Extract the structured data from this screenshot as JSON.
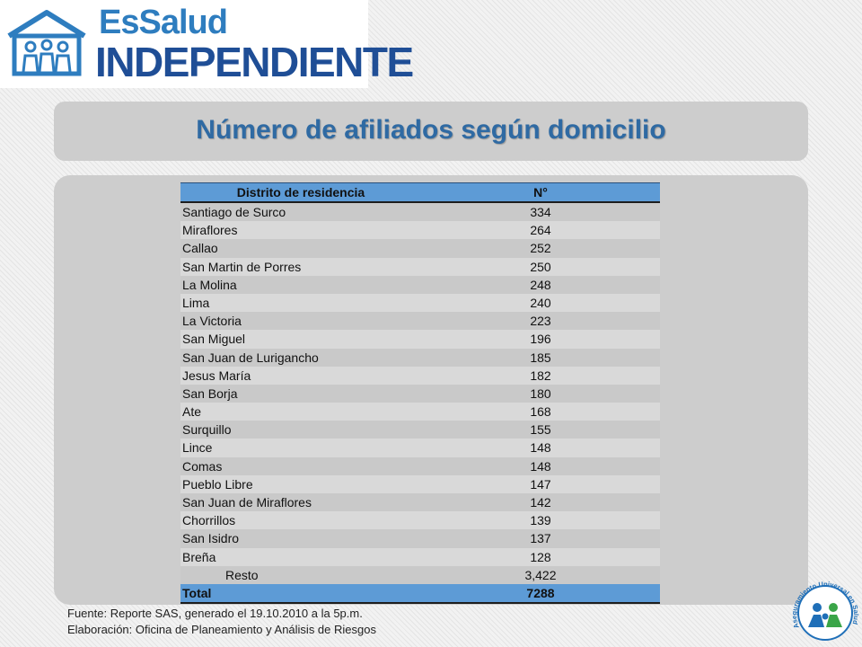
{
  "logo": {
    "line1": "EsSalud",
    "line2": "INDEPENDIENTE",
    "mark_icon": "family-house-icon"
  },
  "title": "Número de afiliados según domicilio",
  "table": {
    "headers": {
      "district": "Distrito de residencia",
      "count": "N°"
    },
    "rows": [
      {
        "district": "Santiago de Surco",
        "count": "334"
      },
      {
        "district": "Miraflores",
        "count": "264"
      },
      {
        "district": "Callao",
        "count": "252"
      },
      {
        "district": "San Martin de Porres",
        "count": "250"
      },
      {
        "district": "La Molina",
        "count": "248"
      },
      {
        "district": "Lima",
        "count": "240"
      },
      {
        "district": "La Victoria",
        "count": "223"
      },
      {
        "district": "San Miguel",
        "count": "196"
      },
      {
        "district": "San Juan de Lurigancho",
        "count": "185"
      },
      {
        "district": "Jesus María",
        "count": "182"
      },
      {
        "district": "San Borja",
        "count": "180"
      },
      {
        "district": "Ate",
        "count": "168"
      },
      {
        "district": "Surquillo",
        "count": "155"
      },
      {
        "district": "Lince",
        "count": "148"
      },
      {
        "district": "Comas",
        "count": "148"
      },
      {
        "district": "Pueblo Libre",
        "count": "147"
      },
      {
        "district": "San Juan de Miraflores",
        "count": "142"
      },
      {
        "district": "Chorrillos",
        "count": "139"
      },
      {
        "district": "San Isidro",
        "count": "137"
      },
      {
        "district": "Breña",
        "count": "128"
      }
    ],
    "resto": {
      "district": "Resto",
      "count": "3,422"
    },
    "total": {
      "district": "Total",
      "count": "7288"
    }
  },
  "footer": {
    "source": "Fuente: Reporte SAS, generado el 19.10.2010 a la  5p.m.",
    "elaboration": "Elaboración: Oficina de Planeamiento y Análisis de Riesgos"
  },
  "seal": {
    "text": "Aseguramiento Universal en Salud",
    "colors": {
      "blue": "#1f6fb8",
      "green": "#3aa548"
    }
  },
  "colors": {
    "brand_blue": "#2e7dbf",
    "brand_dark_blue": "#1f4e96",
    "title_blue": "#2f6aa3",
    "table_header": "#5d9bd6",
    "panel_gray": "#cdcdcd"
  }
}
